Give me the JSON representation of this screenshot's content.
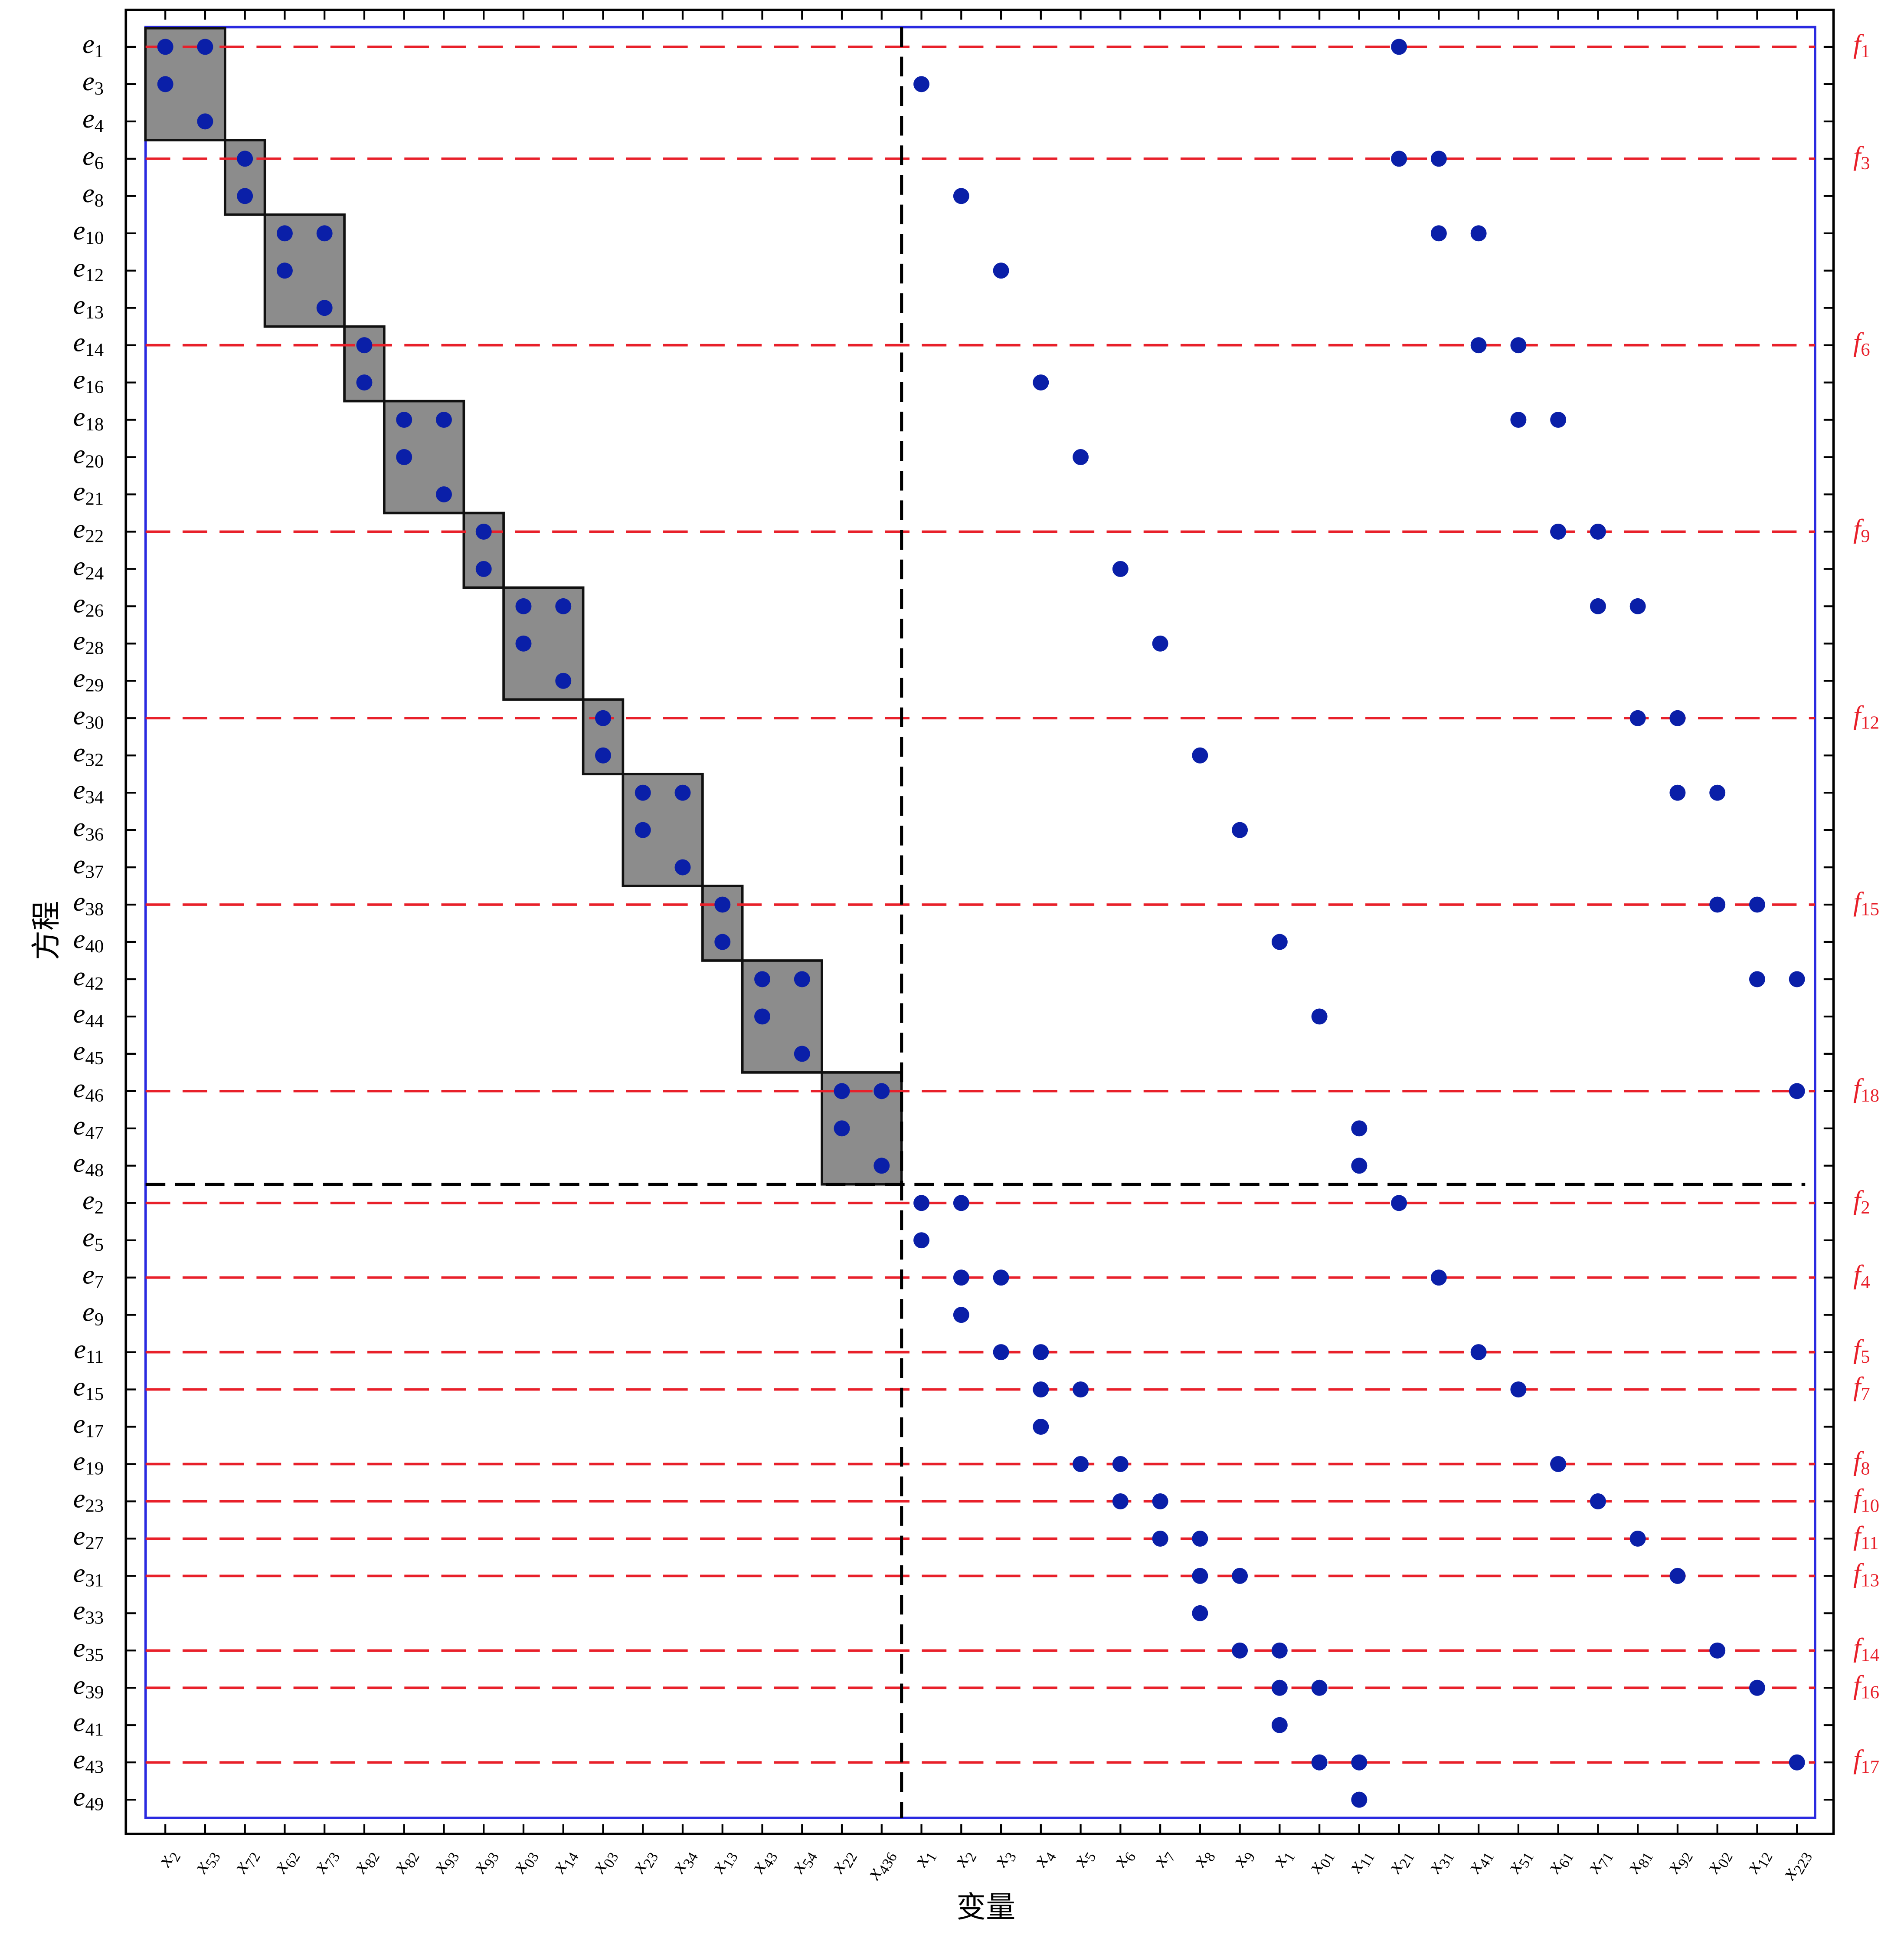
{
  "chart_data": {
    "type": "matrix",
    "x_label": "变量",
    "y_label": "方程",
    "columns": [
      "x2",
      "x53",
      "x72",
      "x62",
      "x73",
      "x82",
      "x82",
      "x93",
      "x93",
      "x03",
      "x14",
      "x03",
      "x23",
      "x34",
      "x13",
      "x43",
      "x54",
      "x22",
      "x436",
      "x1",
      "x2",
      "x3",
      "x4",
      "x5",
      "x6",
      "x7",
      "x8",
      "x9",
      "x1",
      "x01",
      "x11",
      "x21",
      "x31",
      "x41",
      "x51",
      "x61",
      "x71",
      "x81",
      "x92",
      "x02",
      "x12",
      "x223"
    ],
    "rows": [
      {
        "label": "e1",
        "f": "f1",
        "cols": [
          0,
          1,
          31
        ]
      },
      {
        "label": "e3",
        "cols": [
          0,
          19
        ]
      },
      {
        "label": "e4",
        "cols": [
          1
        ]
      },
      {
        "label": "e6",
        "f": "f3",
        "cols": [
          2,
          31,
          32
        ]
      },
      {
        "label": "e8",
        "cols": [
          2,
          20
        ]
      },
      {
        "label": "e10",
        "cols": [
          3,
          4,
          32,
          33
        ]
      },
      {
        "label": "e12",
        "cols": [
          3,
          21
        ]
      },
      {
        "label": "e13",
        "cols": [
          4
        ]
      },
      {
        "label": "e14",
        "f": "f6",
        "cols": [
          5,
          33,
          34
        ]
      },
      {
        "label": "e16",
        "cols": [
          5,
          22
        ]
      },
      {
        "label": "e18",
        "cols": [
          6,
          7,
          34,
          35
        ]
      },
      {
        "label": "e20",
        "cols": [
          6,
          23
        ]
      },
      {
        "label": "e21",
        "cols": [
          7
        ]
      },
      {
        "label": "e22",
        "f": "f9",
        "cols": [
          8,
          35,
          36
        ]
      },
      {
        "label": "e24",
        "cols": [
          8,
          24
        ]
      },
      {
        "label": "e26",
        "cols": [
          9,
          10,
          36,
          37
        ]
      },
      {
        "label": "e28",
        "cols": [
          9,
          25
        ]
      },
      {
        "label": "e29",
        "cols": [
          10
        ]
      },
      {
        "label": "e30",
        "f": "f12",
        "cols": [
          11,
          37,
          38
        ]
      },
      {
        "label": "e32",
        "cols": [
          11,
          26
        ]
      },
      {
        "label": "e34",
        "cols": [
          12,
          13,
          38,
          39
        ]
      },
      {
        "label": "e36",
        "cols": [
          12,
          27
        ]
      },
      {
        "label": "e37",
        "cols": [
          13
        ]
      },
      {
        "label": "e38",
        "f": "f15",
        "cols": [
          14,
          39,
          40
        ]
      },
      {
        "label": "e40",
        "cols": [
          14,
          28
        ]
      },
      {
        "label": "e42",
        "cols": [
          15,
          16,
          40,
          41
        ]
      },
      {
        "label": "e44",
        "cols": [
          15,
          29
        ]
      },
      {
        "label": "e45",
        "cols": [
          16
        ]
      },
      {
        "label": "e46",
        "f": "f18",
        "cols": [
          17,
          18,
          41
        ]
      },
      {
        "label": "e47",
        "cols": [
          17,
          30
        ]
      },
      {
        "label": "e48",
        "cols": [
          18,
          30
        ]
      },
      {
        "label": "e2",
        "f": "f2",
        "cols": [
          19,
          20,
          31
        ]
      },
      {
        "label": "e5",
        "cols": [
          19
        ]
      },
      {
        "label": "e7",
        "f": "f4",
        "cols": [
          20,
          21,
          32
        ]
      },
      {
        "label": "e9",
        "cols": [
          20
        ]
      },
      {
        "label": "e11",
        "f": "f5",
        "cols": [
          21,
          22,
          33
        ]
      },
      {
        "label": "e15",
        "f": "f7",
        "cols": [
          22,
          23,
          34
        ]
      },
      {
        "label": "e17",
        "cols": [
          22
        ]
      },
      {
        "label": "e19",
        "f": "f8",
        "cols": [
          23,
          24,
          35
        ]
      },
      {
        "label": "e23",
        "f": "f10",
        "cols": [
          24,
          25,
          36
        ]
      },
      {
        "label": "e27",
        "f": "f11",
        "cols": [
          25,
          26,
          37
        ]
      },
      {
        "label": "e31",
        "f": "f13",
        "cols": [
          26,
          27,
          38
        ]
      },
      {
        "label": "e33",
        "cols": [
          26
        ]
      },
      {
        "label": "e35",
        "f": "f14",
        "cols": [
          27,
          28,
          39
        ]
      },
      {
        "label": "e39",
        "f": "f16",
        "cols": [
          28,
          29,
          40
        ]
      },
      {
        "label": "e41",
        "cols": [
          28
        ]
      },
      {
        "label": "e43",
        "f": "f17",
        "cols": [
          29,
          30,
          41
        ]
      },
      {
        "label": "e49",
        "cols": [
          30
        ]
      }
    ],
    "blocks": [
      {
        "rows": [
          0,
          2
        ],
        "cols": [
          0,
          1
        ]
      },
      {
        "rows": [
          3,
          4
        ],
        "cols": [
          2,
          2
        ]
      },
      {
        "rows": [
          5,
          7
        ],
        "cols": [
          3,
          4
        ]
      },
      {
        "rows": [
          8,
          9
        ],
        "cols": [
          5,
          5
        ]
      },
      {
        "rows": [
          10,
          12
        ],
        "cols": [
          6,
          7
        ]
      },
      {
        "rows": [
          13,
          14
        ],
        "cols": [
          8,
          8
        ]
      },
      {
        "rows": [
          15,
          17
        ],
        "cols": [
          9,
          10
        ]
      },
      {
        "rows": [
          18,
          19
        ],
        "cols": [
          11,
          11
        ]
      },
      {
        "rows": [
          20,
          22
        ],
        "cols": [
          12,
          13
        ]
      },
      {
        "rows": [
          23,
          24
        ],
        "cols": [
          14,
          14
        ]
      },
      {
        "rows": [
          25,
          27
        ],
        "cols": [
          15,
          16
        ]
      },
      {
        "rows": [
          28,
          30
        ],
        "cols": [
          17,
          18
        ]
      }
    ],
    "split": {
      "rows": 31,
      "cols": 19
    },
    "point_color": "#0a1fa8",
    "line_color": "#e8202a"
  }
}
